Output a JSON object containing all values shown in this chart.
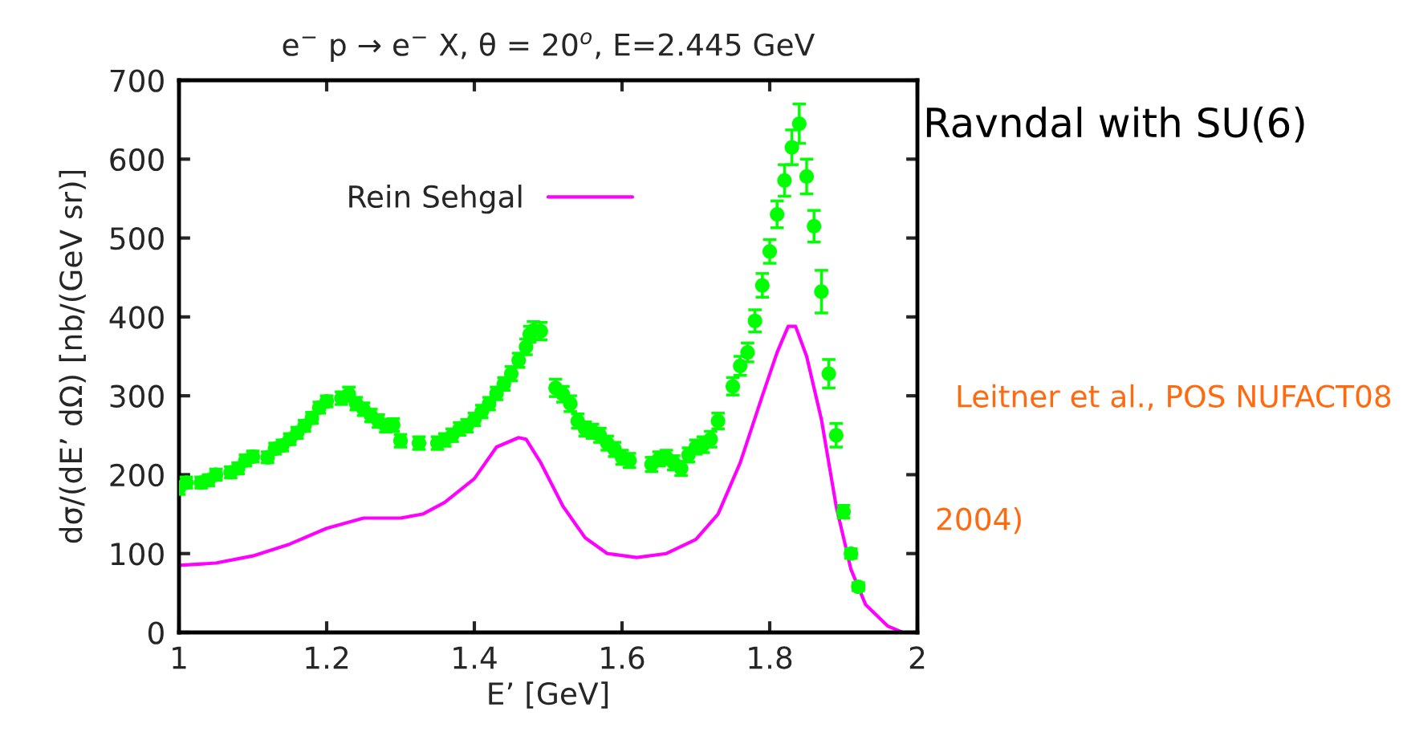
{
  "chart_data": {
    "type": "scatter",
    "title": "e$^{−}$ p → e$^{−}$ X, θ = 20$^{o}$, E=2.445 GeV",
    "xlabel": "E’ [GeV]",
    "ylabel": "dσ/(dE’ dΩ) [nb/(GeV sr)]",
    "xlim": [
      1,
      2
    ],
    "xticks": [
      1,
      1.2,
      1.4,
      1.6,
      1.8,
      2
    ],
    "ylim": [
      0,
      700
    ],
    "yticks": [
      0,
      100,
      200,
      300,
      400,
      500,
      600,
      700
    ],
    "grid": false,
    "legend": "top left",
    "series": [
      {
        "color": "#00ff00",
        "marker": "circle",
        "x": [
          1.0,
          1.01,
          1.03,
          1.04,
          1.05,
          1.07,
          1.08,
          1.09,
          1.1,
          1.12,
          1.13,
          1.14,
          1.15,
          1.16,
          1.17,
          1.18,
          1.19,
          1.2,
          1.22,
          1.23,
          1.24,
          1.25,
          1.26,
          1.27,
          1.28,
          1.29,
          1.3,
          1.325,
          1.35,
          1.36,
          1.37,
          1.38,
          1.39,
          1.4,
          1.41,
          1.42,
          1.43,
          1.44,
          1.45,
          1.46,
          1.47,
          1.475,
          1.48,
          1.49,
          1.51,
          1.52,
          1.53,
          1.54,
          1.55,
          1.56,
          1.57,
          1.58,
          1.59,
          1.6,
          1.61,
          1.64,
          1.65,
          1.66,
          1.67,
          1.68,
          1.69,
          1.7,
          1.71,
          1.72,
          1.73,
          1.75,
          1.76,
          1.77,
          1.78,
          1.79,
          1.8,
          1.81,
          1.82,
          1.83,
          1.84,
          1.85,
          1.86,
          1.87,
          1.88,
          1.89,
          1.9,
          1.91,
          1.92
        ],
        "values": [
          183,
          190,
          190,
          193,
          200,
          203,
          208,
          218,
          223,
          222,
          233,
          237,
          245,
          253,
          262,
          272,
          285,
          293,
          297,
          302,
          290,
          283,
          275,
          268,
          262,
          263,
          243,
          240,
          240,
          244,
          250,
          258,
          262,
          270,
          280,
          290,
          303,
          315,
          328,
          345,
          362,
          378,
          383,
          382,
          310,
          302,
          290,
          268,
          258,
          255,
          250,
          240,
          232,
          222,
          218,
          213,
          220,
          222,
          215,
          208,
          225,
          235,
          238,
          245,
          268,
          312,
          338,
          355,
          395,
          440,
          483,
          530,
          573,
          615,
          645,
          578,
          515,
          432,
          328,
          250,
          153,
          100,
          58
        ],
        "errors": [
          8,
          7,
          7,
          7,
          7,
          7,
          7,
          7,
          7,
          7,
          7,
          7,
          7,
          7,
          7,
          7,
          7,
          7,
          8,
          9,
          8,
          8,
          8,
          8,
          8,
          8,
          8,
          8,
          8,
          8,
          8,
          8,
          8,
          8,
          8,
          8,
          8,
          8,
          9,
          9,
          10,
          10,
          11,
          11,
          11,
          10,
          10,
          9,
          9,
          9,
          9,
          9,
          9,
          9,
          9,
          9,
          9,
          9,
          9,
          9,
          9,
          9,
          10,
          10,
          10,
          11,
          12,
          12,
          14,
          15,
          15,
          17,
          20,
          22,
          25,
          22,
          20,
          27,
          18,
          15,
          8,
          6,
          5
        ]
      },
      {
        "type": "line",
        "name": "Rein Sehgal",
        "color": "#ff00ff",
        "marker": "none",
        "x": [
          1.0,
          1.05,
          1.1,
          1.15,
          1.2,
          1.25,
          1.3,
          1.33,
          1.36,
          1.4,
          1.43,
          1.46,
          1.47,
          1.49,
          1.52,
          1.55,
          1.58,
          1.62,
          1.66,
          1.7,
          1.73,
          1.76,
          1.79,
          1.81,
          1.825,
          1.835,
          1.85,
          1.87,
          1.89,
          1.91,
          1.93,
          1.96,
          1.98,
          2.0
        ],
        "values": [
          85,
          88,
          97,
          112,
          132,
          145,
          145,
          150,
          165,
          195,
          235,
          247,
          245,
          215,
          160,
          120,
          100,
          95,
          100,
          118,
          150,
          215,
          300,
          355,
          388,
          388,
          350,
          270,
          160,
          80,
          35,
          8,
          0,
          0
        ]
      }
    ],
    "annotations": [
      "Ravndal with SU(6)",
      "Leitner et al., POS NUFACT08",
      "2004)"
    ]
  }
}
